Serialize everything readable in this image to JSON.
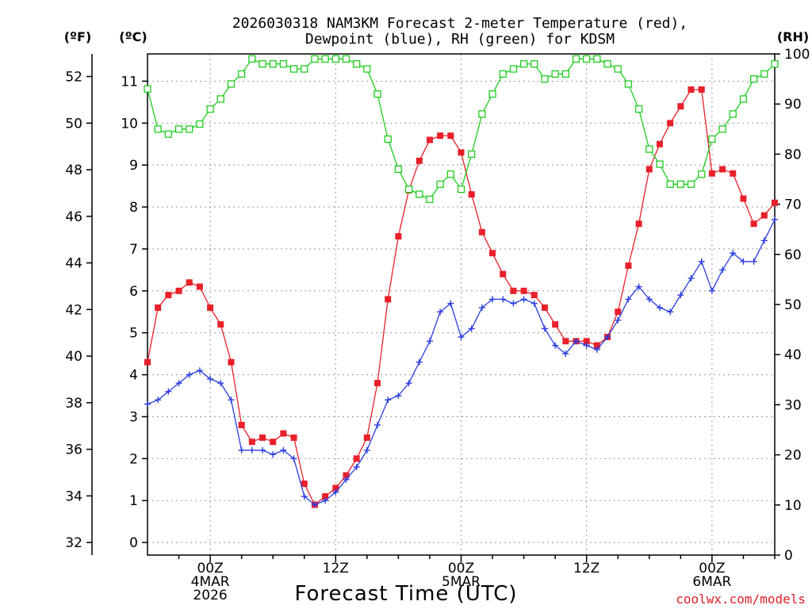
{
  "chart_data": {
    "type": "line",
    "title_lines": [
      "2026030318 NAM3KM Forecast 2-meter Temperature (red),",
      "Dewpoint (blue), RH (green) for KDSM"
    ],
    "xlabel": "Forecast Time (UTC)",
    "x_range": [
      -6,
      54
    ],
    "x_ticks": [
      {
        "x": 0,
        "lines": [
          "00Z",
          "4MAR",
          "2026"
        ]
      },
      {
        "x": 12,
        "lines": [
          "12Z"
        ]
      },
      {
        "x": 24,
        "lines": [
          "00Z",
          "5MAR"
        ]
      },
      {
        "x": 36,
        "lines": [
          "12Z"
        ]
      },
      {
        "x": 48,
        "lines": [
          "00Z",
          "6MAR"
        ]
      }
    ],
    "left_axis_f": {
      "unit_label": "(ºF)",
      "ticks": [
        32,
        34,
        36,
        38,
        40,
        42,
        44,
        46,
        48,
        50,
        52
      ]
    },
    "left_axis_c": {
      "unit_label": "(ºC)",
      "range": [
        -0.3,
        11.65
      ],
      "ticks": [
        0,
        1,
        2,
        3,
        4,
        5,
        6,
        7,
        8,
        9,
        10,
        11
      ]
    },
    "right_axis": {
      "unit_label": "(RH)",
      "range": [
        0,
        100
      ],
      "ticks": [
        0,
        10,
        20,
        30,
        40,
        50,
        60,
        70,
        80,
        90,
        100
      ]
    },
    "credit": "coolwx.com/models",
    "series": [
      {
        "name": "2-meter Temperature",
        "color": "#e8202a",
        "marker": "filled-square",
        "axis": "celsius",
        "x": [
          -6,
          -5,
          -4,
          -3,
          -2,
          -1,
          0,
          1,
          2,
          3,
          4,
          5,
          6,
          7,
          8,
          9,
          10,
          11,
          12,
          13,
          14,
          15,
          16,
          17,
          18,
          19,
          20,
          21,
          22,
          23,
          24,
          25,
          26,
          27,
          28,
          29,
          30,
          31,
          32,
          33,
          34,
          35,
          36,
          37,
          38,
          39,
          40,
          41,
          42,
          43,
          44,
          45,
          46,
          47,
          48,
          49,
          50,
          51,
          52,
          53,
          54
        ],
        "values": [
          4.3,
          5.6,
          5.9,
          6.0,
          6.2,
          6.1,
          5.6,
          5.2,
          4.3,
          2.8,
          2.4,
          2.5,
          2.4,
          2.6,
          2.5,
          1.4,
          0.9,
          1.1,
          1.3,
          1.6,
          2.0,
          2.5,
          3.8,
          5.8,
          7.3,
          8.4,
          9.1,
          9.6,
          9.7,
          9.7,
          9.3,
          8.3,
          7.4,
          6.9,
          6.4,
          6.0,
          6.0,
          5.9,
          5.6,
          5.2,
          4.8,
          4.8,
          4.8,
          4.7,
          4.9,
          5.5,
          6.6,
          7.6,
          8.9,
          9.5,
          10.0,
          10.4,
          10.8,
          10.8,
          8.8,
          8.9,
          8.8,
          8.2,
          7.6,
          7.8,
          8.1
        ]
      },
      {
        "name": "Dewpoint",
        "color": "#2a3ce0",
        "marker": "plus",
        "axis": "celsius",
        "x": [
          -6,
          -5,
          -4,
          -3,
          -2,
          -1,
          0,
          1,
          2,
          3,
          4,
          5,
          6,
          7,
          8,
          9,
          10,
          11,
          12,
          13,
          14,
          15,
          16,
          17,
          18,
          19,
          20,
          21,
          22,
          23,
          24,
          25,
          26,
          27,
          28,
          29,
          30,
          31,
          32,
          33,
          34,
          35,
          36,
          37,
          38,
          39,
          40,
          41,
          42,
          43,
          44,
          45,
          46,
          47,
          48,
          49,
          50,
          51,
          52,
          53,
          54
        ],
        "values": [
          3.3,
          3.4,
          3.6,
          3.8,
          4.0,
          4.1,
          3.9,
          3.8,
          3.4,
          2.2,
          2.2,
          2.2,
          2.1,
          2.2,
          2.0,
          1.1,
          0.9,
          1.0,
          1.2,
          1.5,
          1.8,
          2.2,
          2.8,
          3.4,
          3.5,
          3.8,
          4.3,
          4.8,
          5.5,
          5.7,
          4.9,
          5.1,
          5.6,
          5.8,
          5.8,
          5.7,
          5.8,
          5.7,
          5.1,
          4.7,
          4.5,
          4.8,
          4.7,
          4.6,
          4.9,
          5.3,
          5.8,
          6.1,
          5.8,
          5.6,
          5.5,
          5.9,
          6.3,
          6.7,
          6.0,
          6.5,
          6.9,
          6.7,
          6.7,
          7.2,
          7.7
        ]
      },
      {
        "name": "RH",
        "color": "#20cc20",
        "marker": "open-square",
        "axis": "rh",
        "x": [
          -6,
          -5,
          -4,
          -3,
          -2,
          -1,
          0,
          1,
          2,
          3,
          4,
          5,
          6,
          7,
          8,
          9,
          10,
          11,
          12,
          13,
          14,
          15,
          16,
          17,
          18,
          19,
          20,
          21,
          22,
          23,
          24,
          25,
          26,
          27,
          28,
          29,
          30,
          31,
          32,
          33,
          34,
          35,
          36,
          37,
          38,
          39,
          40,
          41,
          42,
          43,
          44,
          45,
          46,
          47,
          48,
          49,
          50,
          51,
          52,
          53,
          54
        ],
        "values": [
          93,
          85,
          84,
          85,
          85,
          86,
          89,
          91,
          94,
          96,
          99,
          98,
          98,
          98,
          97,
          97,
          99,
          99,
          99,
          99,
          98,
          97,
          92,
          83,
          77,
          73,
          72,
          71,
          74,
          76,
          73,
          80,
          88,
          92,
          96,
          97,
          98,
          98,
          95,
          96,
          96,
          99,
          99,
          99,
          98,
          97,
          94,
          89,
          81,
          78,
          74,
          74,
          74,
          76,
          83,
          85,
          88,
          91,
          95,
          96,
          98
        ]
      }
    ]
  }
}
